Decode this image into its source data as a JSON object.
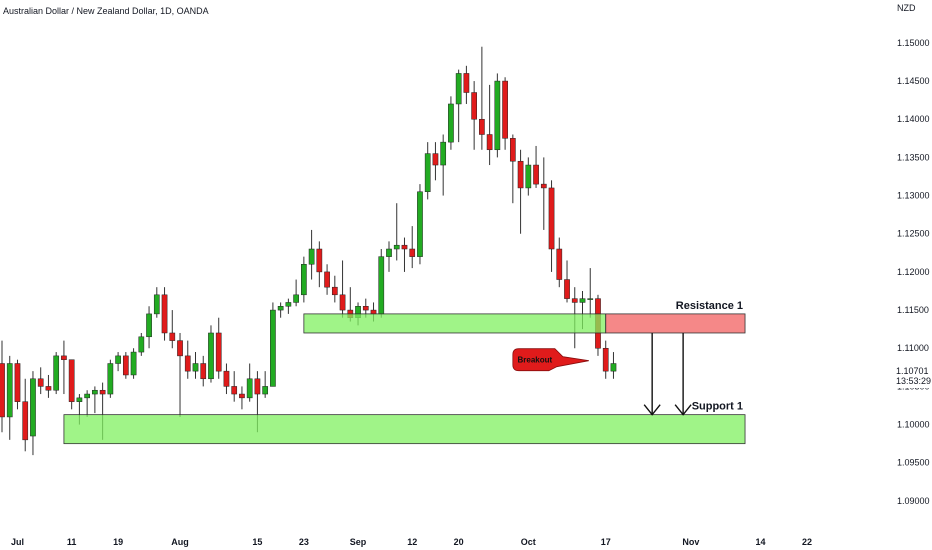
{
  "header": {
    "title": "Australian Dollar / New Zealand Dollar, 1D, OANDA",
    "currency": "NZD"
  },
  "chart_data": {
    "type": "candlestick",
    "title": "Australian Dollar / New Zealand Dollar, 1D, OANDA",
    "ylim": [
      1.0875,
      1.153
    ],
    "y_ticks": [
      "1.15000",
      "1.14500",
      "1.14000",
      "1.13500",
      "1.13000",
      "1.12500",
      "1.12000",
      "1.11500",
      "1.11000",
      "1.10500",
      "1.10000",
      "1.09500",
      "1.09000"
    ],
    "x_ticks": [
      {
        "label": "Jul",
        "index": 2
      },
      {
        "label": "11",
        "index": 9
      },
      {
        "label": "19",
        "index": 15
      },
      {
        "label": "Aug",
        "index": 23
      },
      {
        "label": "15",
        "index": 33
      },
      {
        "label": "23",
        "index": 39
      },
      {
        "label": "Sep",
        "index": 46
      },
      {
        "label": "12",
        "index": 53
      },
      {
        "label": "20",
        "index": 59
      },
      {
        "label": "Oct",
        "index": 68
      },
      {
        "label": "17",
        "index": 78
      },
      {
        "label": "Nov",
        "index": 89
      },
      {
        "label": "14",
        "index": 98
      },
      {
        "label": "22",
        "index": 104
      }
    ],
    "candles": [
      [
        1.108,
        1.111,
        1.099,
        1.101
      ],
      [
        1.101,
        1.109,
        1.098,
        1.108
      ],
      [
        1.108,
        1.1085,
        1.102,
        1.103
      ],
      [
        1.103,
        1.106,
        1.0965,
        1.098
      ],
      [
        1.0985,
        1.107,
        1.096,
        1.106
      ],
      [
        1.106,
        1.1075,
        1.104,
        1.105
      ],
      [
        1.105,
        1.1065,
        1.1035,
        1.1045
      ],
      [
        1.1045,
        1.1095,
        1.104,
        1.109
      ],
      [
        1.109,
        1.111,
        1.104,
        1.1085
      ],
      [
        1.1085,
        1.1085,
        1.102,
        1.103
      ],
      [
        1.103,
        1.104,
        1.1,
        1.1035
      ],
      [
        1.1035,
        1.1045,
        1.101,
        1.104
      ],
      [
        1.104,
        1.105,
        1.1015,
        1.1045
      ],
      [
        1.1045,
        1.1055,
        1.098,
        1.104
      ],
      [
        1.104,
        1.1085,
        1.1035,
        1.108
      ],
      [
        1.108,
        1.1095,
        1.107,
        1.109
      ],
      [
        1.109,
        1.1095,
        1.106,
        1.1065
      ],
      [
        1.1065,
        1.11,
        1.106,
        1.1095
      ],
      [
        1.1095,
        1.112,
        1.109,
        1.1115
      ],
      [
        1.1115,
        1.1155,
        1.11,
        1.1145
      ],
      [
        1.1145,
        1.118,
        1.114,
        1.117
      ],
      [
        1.117,
        1.118,
        1.111,
        1.112
      ],
      [
        1.112,
        1.115,
        1.11,
        1.111
      ],
      [
        1.111,
        1.112,
        1.101,
        1.109
      ],
      [
        1.109,
        1.111,
        1.106,
        1.107
      ],
      [
        1.107,
        1.1095,
        1.106,
        1.108
      ],
      [
        1.108,
        1.109,
        1.105,
        1.106
      ],
      [
        1.106,
        1.113,
        1.1055,
        1.112
      ],
      [
        1.112,
        1.114,
        1.106,
        1.107
      ],
      [
        1.107,
        1.108,
        1.104,
        1.105
      ],
      [
        1.105,
        1.107,
        1.103,
        1.104
      ],
      [
        1.104,
        1.105,
        1.102,
        1.1035
      ],
      [
        1.1035,
        1.108,
        1.103,
        1.106
      ],
      [
        1.106,
        1.107,
        1.099,
        1.104
      ],
      [
        1.104,
        1.107,
        1.1035,
        1.105
      ],
      [
        1.105,
        1.116,
        1.105,
        1.115
      ],
      [
        1.115,
        1.116,
        1.114,
        1.1155
      ],
      [
        1.1155,
        1.1165,
        1.1145,
        1.116
      ],
      [
        1.116,
        1.119,
        1.1155,
        1.117
      ],
      [
        1.117,
        1.122,
        1.116,
        1.121
      ],
      [
        1.121,
        1.1255,
        1.119,
        1.123
      ],
      [
        1.123,
        1.124,
        1.118,
        1.12
      ],
      [
        1.12,
        1.121,
        1.117,
        1.118
      ],
      [
        1.118,
        1.1195,
        1.116,
        1.117
      ],
      [
        1.117,
        1.1215,
        1.114,
        1.115
      ],
      [
        1.115,
        1.118,
        1.1135,
        1.114
      ],
      [
        1.114,
        1.116,
        1.113,
        1.1155
      ],
      [
        1.1155,
        1.1165,
        1.114,
        1.115
      ],
      [
        1.115,
        1.116,
        1.1135,
        1.1145
      ],
      [
        1.1145,
        1.123,
        1.114,
        1.122
      ],
      [
        1.122,
        1.124,
        1.12,
        1.123
      ],
      [
        1.123,
        1.129,
        1.1215,
        1.1235
      ],
      [
        1.1235,
        1.1245,
        1.12,
        1.123
      ],
      [
        1.123,
        1.126,
        1.1205,
        1.122
      ],
      [
        1.122,
        1.1315,
        1.121,
        1.1305
      ],
      [
        1.1305,
        1.137,
        1.1295,
        1.1355
      ],
      [
        1.1355,
        1.137,
        1.132,
        1.134
      ],
      [
        1.134,
        1.138,
        1.13,
        1.137
      ],
      [
        1.137,
        1.143,
        1.136,
        1.142
      ],
      [
        1.142,
        1.1465,
        1.137,
        1.146
      ],
      [
        1.146,
        1.147,
        1.142,
        1.1435
      ],
      [
        1.1435,
        1.145,
        1.136,
        1.14
      ],
      [
        1.14,
        1.1495,
        1.136,
        1.138
      ],
      [
        1.138,
        1.1445,
        1.134,
        1.136
      ],
      [
        1.136,
        1.146,
        1.135,
        1.145
      ],
      [
        1.145,
        1.1455,
        1.136,
        1.1375
      ],
      [
        1.1375,
        1.138,
        1.129,
        1.1345
      ],
      [
        1.1345,
        1.136,
        1.125,
        1.131
      ],
      [
        1.131,
        1.135,
        1.13,
        1.134
      ],
      [
        1.134,
        1.1365,
        1.131,
        1.1315
      ],
      [
        1.1315,
        1.135,
        1.1255,
        1.131
      ],
      [
        1.131,
        1.132,
        1.12,
        1.123
      ],
      [
        1.123,
        1.1245,
        1.118,
        1.119
      ],
      [
        1.119,
        1.1215,
        1.116,
        1.1165
      ],
      [
        1.1165,
        1.118,
        1.11,
        1.116
      ],
      [
        1.116,
        1.1175,
        1.1125,
        1.1165
      ],
      [
        1.1165,
        1.1205,
        1.114,
        1.1165
      ],
      [
        1.1165,
        1.117,
        1.109,
        1.11
      ],
      [
        1.11,
        1.111,
        1.106,
        1.107
      ],
      [
        1.107,
        1.1095,
        1.106,
        1.108
      ]
    ],
    "last_price": "1.10701",
    "countdown": "13:53:29",
    "zones": [
      {
        "label": "",
        "top": 1.1145,
        "bottom": 1.112,
        "color": "#80f060",
        "start_index": 39,
        "end_index": 78
      },
      {
        "label": "Resistance 1",
        "top": 1.1145,
        "bottom": 1.112,
        "color": "#f04848",
        "start_index": 78,
        "end_index": 96
      },
      {
        "label": "Support 1",
        "top": 1.1013,
        "bottom": 1.0975,
        "color": "#80f060",
        "start_index": 8,
        "end_index": 96
      }
    ],
    "annotations": [
      {
        "label": "Breakout",
        "price": 1.1085,
        "index": 66
      }
    ],
    "arrows": [
      {
        "index": 84,
        "from": 1.112,
        "to": 1.1013
      },
      {
        "index": 88,
        "from": 1.112,
        "to": 1.1013
      }
    ],
    "colors": {
      "up": "#22ab22",
      "down": "#e01b1b",
      "wick": "#333333"
    }
  }
}
